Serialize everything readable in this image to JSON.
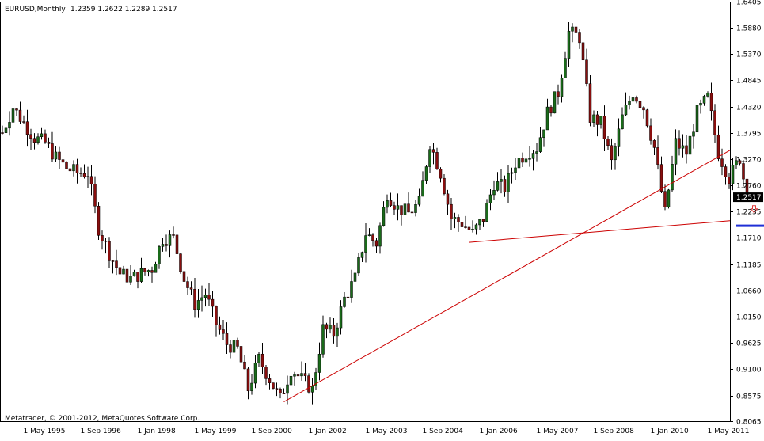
{
  "header": {
    "symbol_text": "EURUSD,Monthly",
    "ohlc_text": "1.2359 1.2622 1.2289 1.2517"
  },
  "footer": {
    "copyright": "Metatrader, © 2001-2012, MetaQuotes Software Corp."
  },
  "colors": {
    "bullish": "#1a6b1a",
    "bearish": "#8a0f0f",
    "trendline": "#cc0000",
    "horizontal_zone": "#1f2fd6",
    "arrow": "#e23b3b",
    "price_marker_bg": "#000000"
  },
  "chart_data": {
    "type": "candlestick",
    "symbol": "EURUSD",
    "timeframe": "Monthly",
    "current_price": "1.2517",
    "ylim": [
      0.8065,
      1.6405
    ],
    "y_ticks": [
      "1.6405",
      "1.5880",
      "1.5370",
      "1.4845",
      "1.4320",
      "1.3795",
      "1.3270",
      "1.2760",
      "1.2235",
      "1.1710",
      "1.1185",
      "1.0660",
      "1.0150",
      "0.9625",
      "0.9100",
      "0.8575",
      "0.8065"
    ],
    "x_ticks": [
      {
        "date": "1995-05",
        "label": "1 May 1995"
      },
      {
        "date": "1996-09",
        "label": "1 Sep 1996"
      },
      {
        "date": "1998-01",
        "label": "1 Jan 1998"
      },
      {
        "date": "1999-05",
        "label": "1 May 1999"
      },
      {
        "date": "2000-09",
        "label": "1 Sep 2000"
      },
      {
        "date": "2002-01",
        "label": "1 Jan 2002"
      },
      {
        "date": "2003-05",
        "label": "1 May 2003"
      },
      {
        "date": "2004-09",
        "label": "1 Sep 2004"
      },
      {
        "date": "2006-01",
        "label": "1 Jan 2006"
      },
      {
        "date": "2007-05",
        "label": "1 May 2007"
      },
      {
        "date": "2008-09",
        "label": "1 Sep 2008"
      },
      {
        "date": "2010-01",
        "label": "1 Jan 2010"
      },
      {
        "date": "2011-05",
        "label": "1 May 2011"
      }
    ],
    "x_start": "1994-12",
    "close_path": [
      [
        "1994-12",
        1.38
      ],
      [
        "1995-03",
        1.43
      ],
      [
        "1995-06",
        1.4
      ],
      [
        "1995-09",
        1.37
      ],
      [
        "1995-12",
        1.36
      ],
      [
        "1996-03",
        1.33
      ],
      [
        "1996-06",
        1.31
      ],
      [
        "1996-09",
        1.3
      ],
      [
        "1996-12",
        1.3
      ],
      [
        "1997-03",
        1.19
      ],
      [
        "1997-06",
        1.14
      ],
      [
        "1997-09",
        1.1
      ],
      [
        "1997-12",
        1.09
      ],
      [
        "1998-03",
        1.1
      ],
      [
        "1998-06",
        1.11
      ],
      [
        "1998-09",
        1.17
      ],
      [
        "1998-12",
        1.17
      ],
      [
        "1999-03",
        1.09
      ],
      [
        "1999-06",
        1.04
      ],
      [
        "1999-09",
        1.06
      ],
      [
        "1999-12",
        1.0
      ],
      [
        "2000-03",
        0.96
      ],
      [
        "2000-06",
        0.95
      ],
      [
        "2000-09",
        0.87
      ],
      [
        "2000-12",
        0.93
      ],
      [
        "2001-03",
        0.89
      ],
      [
        "2001-06",
        0.85
      ],
      [
        "2001-09",
        0.91
      ],
      [
        "2001-12",
        0.89
      ],
      [
        "2002-03",
        0.87
      ],
      [
        "2002-06",
        0.99
      ],
      [
        "2002-09",
        0.98
      ],
      [
        "2002-12",
        1.05
      ],
      [
        "2003-03",
        1.09
      ],
      [
        "2003-06",
        1.18
      ],
      [
        "2003-09",
        1.16
      ],
      [
        "2003-12",
        1.26
      ],
      [
        "2004-03",
        1.23
      ],
      [
        "2004-06",
        1.22
      ],
      [
        "2004-09",
        1.24
      ],
      [
        "2004-12",
        1.36
      ],
      [
        "2005-03",
        1.3
      ],
      [
        "2005-06",
        1.21
      ],
      [
        "2005-09",
        1.2
      ],
      [
        "2005-12",
        1.18
      ],
      [
        "2006-03",
        1.21
      ],
      [
        "2006-06",
        1.28
      ],
      [
        "2006-09",
        1.27
      ],
      [
        "2006-12",
        1.32
      ],
      [
        "2007-03",
        1.34
      ],
      [
        "2007-06",
        1.35
      ],
      [
        "2007-09",
        1.42
      ],
      [
        "2007-12",
        1.46
      ],
      [
        "2008-03",
        1.58
      ],
      [
        "2008-06",
        1.57
      ],
      [
        "2008-09",
        1.41
      ],
      [
        "2008-12",
        1.4
      ],
      [
        "2009-03",
        1.32
      ],
      [
        "2009-06",
        1.41
      ],
      [
        "2009-09",
        1.46
      ],
      [
        "2009-12",
        1.43
      ],
      [
        "2010-03",
        1.35
      ],
      [
        "2010-06",
        1.22
      ],
      [
        "2010-09",
        1.36
      ],
      [
        "2010-12",
        1.34
      ],
      [
        "2011-03",
        1.42
      ],
      [
        "2011-06",
        1.45
      ],
      [
        "2011-09",
        1.34
      ],
      [
        "2011-12",
        1.29
      ],
      [
        "2012-03",
        1.33
      ],
      [
        "2012-05",
        1.2517
      ]
    ],
    "annotations": {
      "trendlines": [
        {
          "from": [
            "2001-07",
            0.845
          ],
          "to": [
            "2013-01",
            1.345
          ]
        },
        {
          "from": [
            "2005-11",
            1.162
          ],
          "to": [
            "2013-01",
            1.205
          ]
        }
      ],
      "support_zone": {
        "from": "2012-02",
        "to": "2012-11",
        "level": 1.195
      },
      "down_arrow": {
        "date": "2012-07",
        "level": 1.235
      }
    }
  }
}
